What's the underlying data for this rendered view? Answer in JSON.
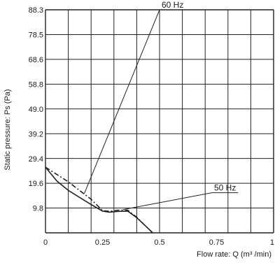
{
  "chart_data": {
    "type": "line",
    "xlabel": "Flow rate: Q (m³ /min)",
    "ylabel": "Static pressure: Ps (Pa)",
    "x_ticks": [
      "0",
      "0.25",
      "0.5",
      "0.75",
      "1"
    ],
    "y_ticks": [
      "9.8",
      "19.6",
      "29.4",
      "39.2",
      "49.0",
      "58.8",
      "68.6",
      "78.5",
      "88.3"
    ],
    "xlim": [
      0,
      1
    ],
    "ylim": [
      0,
      88.3
    ],
    "grid": true,
    "series": [
      {
        "name": "60 Hz",
        "style": "dash-dot",
        "color": "#222222",
        "points": [
          [
            0,
            26.0
          ],
          [
            0.1,
            20.2
          ],
          [
            0.2,
            13.3
          ],
          [
            0.25,
            8.8
          ],
          [
            0.28,
            8.5
          ],
          [
            0.32,
            9.0
          ],
          [
            0.36,
            9.0
          ],
          [
            0.4,
            6.2
          ],
          [
            0.44,
            2.6
          ],
          [
            0.47,
            0
          ]
        ]
      },
      {
        "name": "50 Hz",
        "style": "solid",
        "color": "#222222",
        "points": [
          [
            0,
            26.0
          ],
          [
            0.05,
            20.5
          ],
          [
            0.1,
            16.8
          ],
          [
            0.2,
            11.2
          ],
          [
            0.25,
            8.6
          ],
          [
            0.28,
            8.2
          ],
          [
            0.32,
            8.5
          ],
          [
            0.36,
            8.6
          ],
          [
            0.4,
            6.0
          ],
          [
            0.44,
            2.6
          ],
          [
            0.47,
            0
          ]
        ]
      }
    ],
    "annotations": [
      {
        "text": "60 Hz",
        "target_series": "60 Hz",
        "anchor": [
          0.17,
          15.5
        ],
        "label_at": [
          0.5,
          1.0
        ]
      },
      {
        "text": "50 Hz",
        "target_series": "50 Hz",
        "anchor": [
          0.34,
          9.2
        ],
        "label_at": [
          0.73,
          0.18
        ]
      }
    ]
  }
}
